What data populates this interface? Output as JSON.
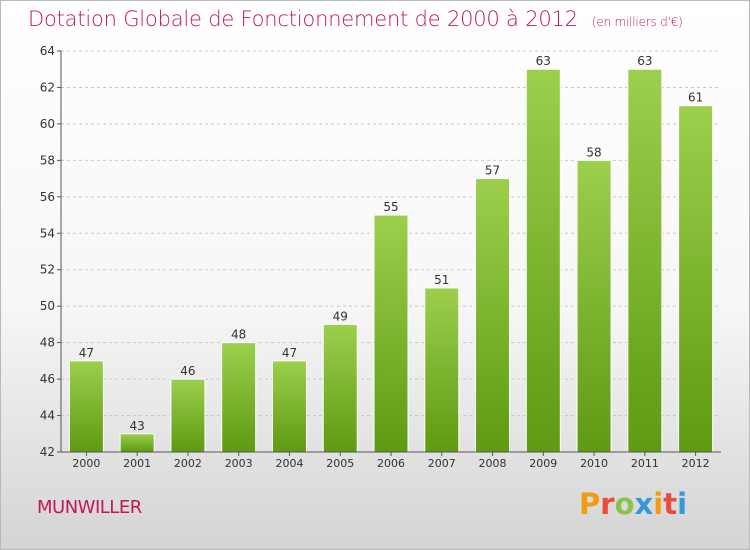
{
  "header": {
    "title": "Dotation Globale de Fonctionnement de 2000 à 2012",
    "unit": "(en milliers d'€)"
  },
  "footer": {
    "place": "MUNWILLER",
    "brand": "Proxiti",
    "brand_colors": [
      "#f39c12",
      "#e74c3c",
      "#8bc34a",
      "#3498db",
      "#f39c12",
      "#e74c3c",
      "#3498db"
    ]
  },
  "colors": {
    "accent": "#c2185b",
    "bar_top": "#9ccf4c",
    "bar_bottom": "#5e9a12"
  },
  "chart_data": {
    "type": "bar",
    "categories": [
      "2000",
      "2001",
      "2002",
      "2003",
      "2004",
      "2005",
      "2006",
      "2007",
      "2008",
      "2009",
      "2010",
      "2011",
      "2012"
    ],
    "values": [
      47,
      43,
      46,
      48,
      47,
      49,
      55,
      51,
      57,
      63,
      58,
      63,
      61
    ],
    "title": "Dotation Globale de Fonctionnement de 2000 à 2012",
    "ylim": [
      42,
      64
    ],
    "yticks": [
      42,
      44,
      46,
      48,
      50,
      52,
      54,
      56,
      58,
      60,
      62,
      64
    ],
    "grid": true,
    "data_labels": true
  }
}
